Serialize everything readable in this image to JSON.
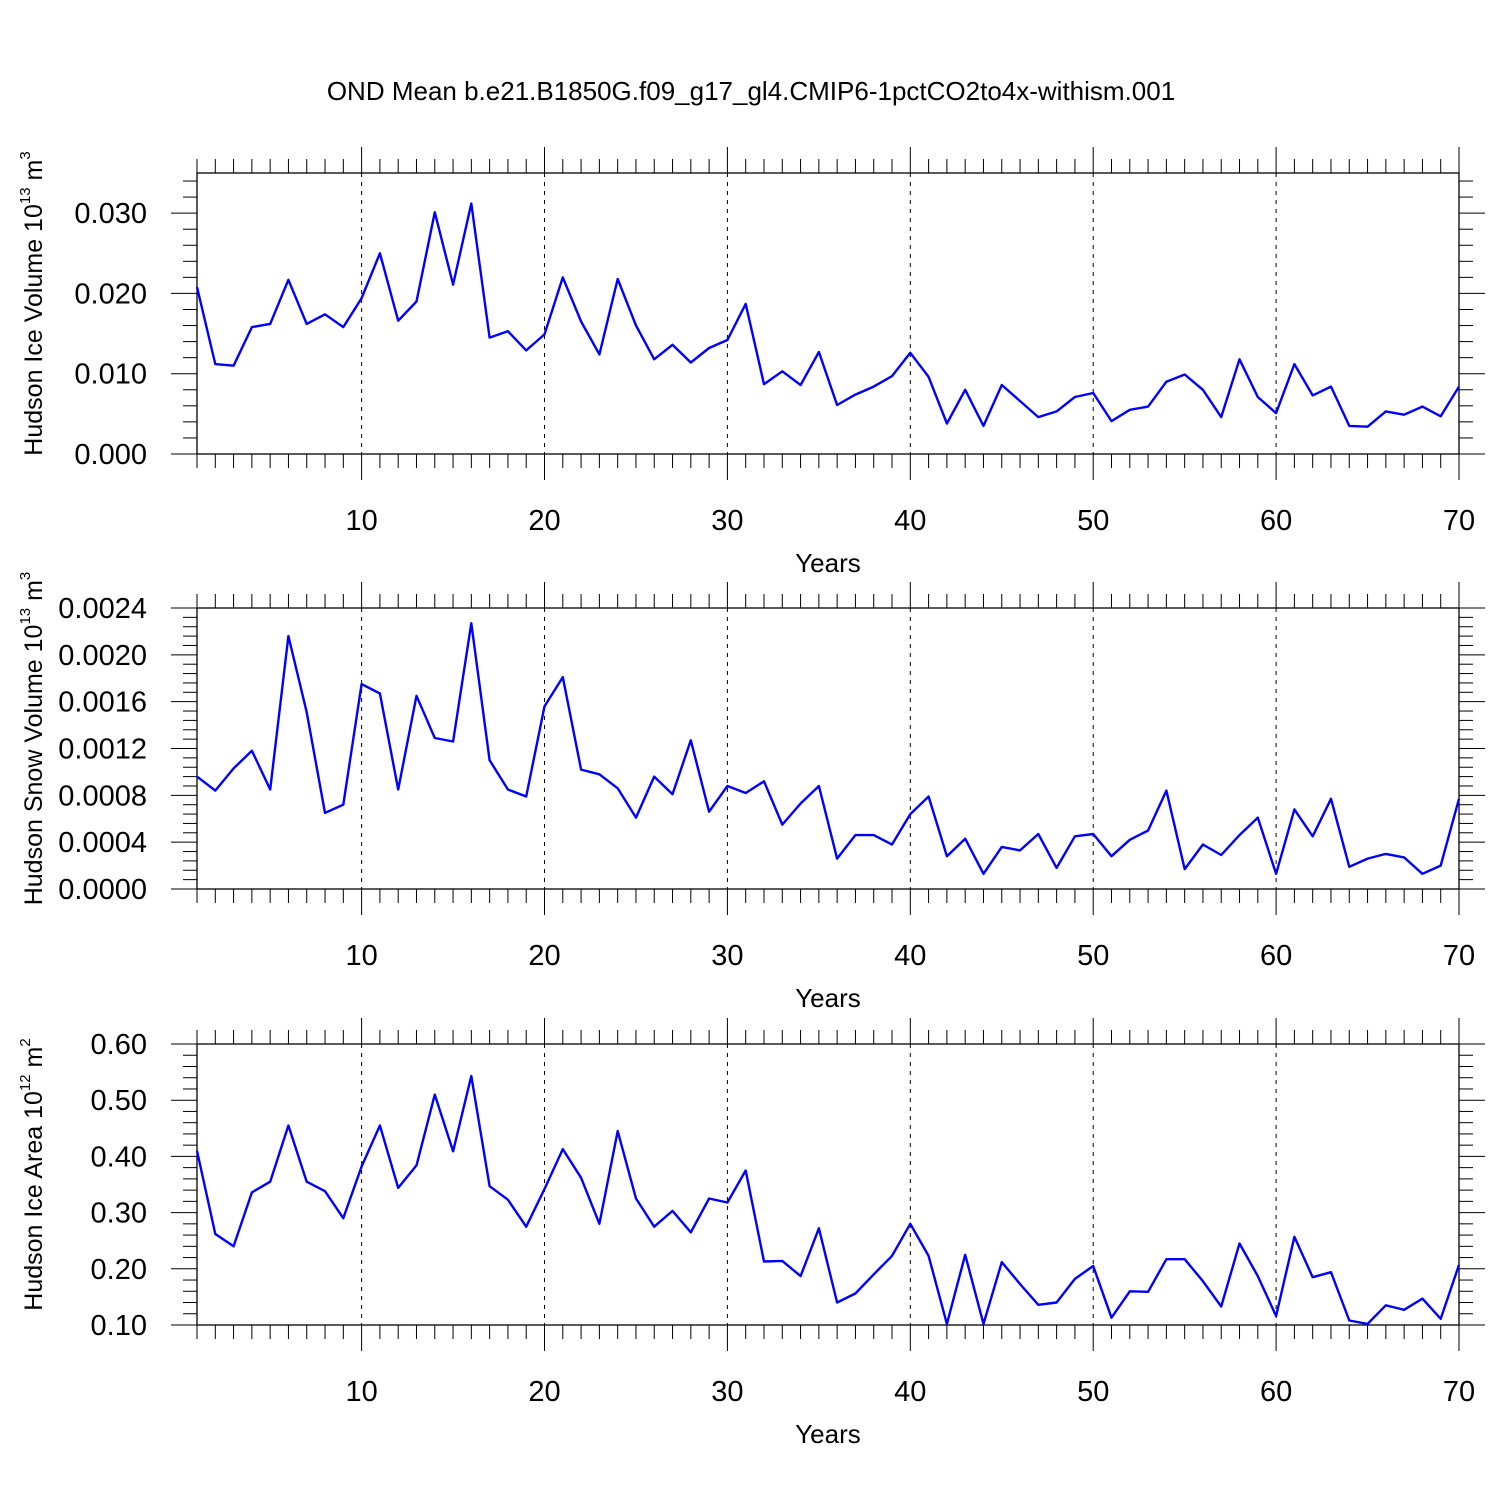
{
  "figure": {
    "title": "OND Mean b.e21.B1850G.f09_g17_gl4.CMIP6-1pctCO2to4x-withism.001"
  },
  "chart_data": [
    {
      "type": "line",
      "xlabel": "Years",
      "ylabel_prefix": "Hudson Ice Volume 10",
      "ylabel_exp": "13",
      "ylabel_unit": " m",
      "ylabel_unit_exp": "3",
      "xlim": [
        1,
        70
      ],
      "ylim": [
        0,
        0.035
      ],
      "xticks": [
        10,
        20,
        30,
        40,
        50,
        60,
        70
      ],
      "yticks": [
        0,
        0.01,
        0.02,
        0.03
      ],
      "ytick_labels": [
        "0.000",
        "0.010",
        "0.020",
        "0.030"
      ],
      "grid": "vertical dashed at major x ticks",
      "color": "#0000ff",
      "x": [
        1,
        2,
        3,
        4,
        5,
        6,
        7,
        8,
        9,
        10,
        11,
        12,
        13,
        14,
        15,
        16,
        17,
        18,
        19,
        20,
        21,
        22,
        23,
        24,
        25,
        26,
        27,
        28,
        29,
        30,
        31,
        32,
        33,
        34,
        35,
        36,
        37,
        38,
        39,
        40,
        41,
        42,
        43,
        44,
        45,
        46,
        47,
        48,
        49,
        50,
        51,
        52,
        53,
        54,
        55,
        56,
        57,
        58,
        59,
        60,
        61,
        62,
        63,
        64,
        65,
        66,
        67,
        68,
        69,
        70
      ],
      "values": [
        0.0208,
        0.0112,
        0.011,
        0.0158,
        0.0162,
        0.0217,
        0.0162,
        0.0174,
        0.0158,
        0.0194,
        0.025,
        0.0166,
        0.019,
        0.0301,
        0.0211,
        0.0312,
        0.0145,
        0.0153,
        0.0129,
        0.0149,
        0.022,
        0.0165,
        0.0124,
        0.0218,
        0.016,
        0.0118,
        0.0136,
        0.0114,
        0.0132,
        0.0142,
        0.0187,
        0.0087,
        0.0103,
        0.0086,
        0.0127,
        0.0061,
        0.0074,
        0.0084,
        0.0097,
        0.0126,
        0.0096,
        0.0038,
        0.008,
        0.0035,
        0.0086,
        0.0066,
        0.0046,
        0.0053,
        0.0071,
        0.0076,
        0.0041,
        0.0055,
        0.0059,
        0.009,
        0.0099,
        0.008,
        0.0046,
        0.0118,
        0.0071,
        0.0051,
        0.0112,
        0.0073,
        0.0084,
        0.0035,
        0.0034,
        0.0053,
        0.0049,
        0.0059,
        0.0047,
        0.0084
      ]
    },
    {
      "type": "line",
      "xlabel": "Years",
      "ylabel_prefix": "Hudson Snow Volume 10",
      "ylabel_exp": "13",
      "ylabel_unit": " m",
      "ylabel_unit_exp": "3",
      "xlim": [
        1,
        70
      ],
      "ylim": [
        0,
        0.0024
      ],
      "xticks": [
        10,
        20,
        30,
        40,
        50,
        60,
        70
      ],
      "yticks": [
        0,
        0.0004,
        0.0008,
        0.0012,
        0.0016,
        0.002,
        0.0024
      ],
      "ytick_labels": [
        "0.0000",
        "0.0004",
        "0.0008",
        "0.0012",
        "0.0016",
        "0.0020",
        "0.0024"
      ],
      "grid": "vertical dashed at major x ticks",
      "color": "#0000ff",
      "x": [
        1,
        2,
        3,
        4,
        5,
        6,
        7,
        8,
        9,
        10,
        11,
        12,
        13,
        14,
        15,
        16,
        17,
        18,
        19,
        20,
        21,
        22,
        23,
        24,
        25,
        26,
        27,
        28,
        29,
        30,
        31,
        32,
        33,
        34,
        35,
        36,
        37,
        38,
        39,
        40,
        41,
        42,
        43,
        44,
        45,
        46,
        47,
        48,
        49,
        50,
        51,
        52,
        53,
        54,
        55,
        56,
        57,
        58,
        59,
        60,
        61,
        62,
        63,
        64,
        65,
        66,
        67,
        68,
        69,
        70
      ],
      "values": [
        0.00096,
        0.00084,
        0.00103,
        0.00118,
        0.00085,
        0.00216,
        0.00151,
        0.00065,
        0.00072,
        0.00175,
        0.00167,
        0.00085,
        0.00165,
        0.00129,
        0.00126,
        0.00227,
        0.0011,
        0.00085,
        0.00079,
        0.00156,
        0.00181,
        0.00102,
        0.00098,
        0.00086,
        0.00061,
        0.00096,
        0.00081,
        0.00127,
        0.00066,
        0.00088,
        0.00082,
        0.00092,
        0.00055,
        0.00073,
        0.00088,
        0.00026,
        0.00046,
        0.00046,
        0.00038,
        0.00064,
        0.00079,
        0.00028,
        0.00043,
        0.00013,
        0.00036,
        0.00033,
        0.00047,
        0.00018,
        0.00045,
        0.00047,
        0.00028,
        0.00042,
        0.0005,
        0.00084,
        0.00017,
        0.00038,
        0.00029,
        0.00046,
        0.00061,
        0.00013,
        0.00068,
        0.00045,
        0.00077,
        0.00019,
        0.00026,
        0.0003,
        0.00027,
        0.00013,
        0.0002,
        0.00077
      ]
    },
    {
      "type": "line",
      "xlabel": "Years",
      "ylabel_prefix": "Hudson Ice Area 10",
      "ylabel_exp": "12",
      "ylabel_unit": " m",
      "ylabel_unit_exp": "2",
      "xlim": [
        1,
        70
      ],
      "ylim": [
        0.1,
        0.6
      ],
      "xticks": [
        10,
        20,
        30,
        40,
        50,
        60,
        70
      ],
      "yticks": [
        0.1,
        0.2,
        0.3,
        0.4,
        0.5,
        0.6
      ],
      "ytick_labels": [
        "0.10",
        "0.20",
        "0.30",
        "0.40",
        "0.50",
        "0.60"
      ],
      "grid": "vertical dashed at major x ticks",
      "color": "#0000ff",
      "x": [
        1,
        2,
        3,
        4,
        5,
        6,
        7,
        8,
        9,
        10,
        11,
        12,
        13,
        14,
        15,
        16,
        17,
        18,
        19,
        20,
        21,
        22,
        23,
        24,
        25,
        26,
        27,
        28,
        29,
        30,
        31,
        32,
        33,
        34,
        35,
        36,
        37,
        38,
        39,
        40,
        41,
        42,
        43,
        44,
        45,
        46,
        47,
        48,
        49,
        50,
        51,
        52,
        53,
        54,
        55,
        56,
        57,
        58,
        59,
        60,
        61,
        62,
        63,
        64,
        65,
        66,
        67,
        68,
        69,
        70
      ],
      "values": [
        0.41,
        0.262,
        0.24,
        0.336,
        0.355,
        0.455,
        0.355,
        0.338,
        0.29,
        0.382,
        0.455,
        0.344,
        0.384,
        0.51,
        0.409,
        0.543,
        0.347,
        0.323,
        0.275,
        0.342,
        0.413,
        0.362,
        0.28,
        0.445,
        0.325,
        0.275,
        0.303,
        0.265,
        0.325,
        0.318,
        0.375,
        0.213,
        0.214,
        0.187,
        0.272,
        0.14,
        0.156,
        0.19,
        0.223,
        0.28,
        0.223,
        0.102,
        0.225,
        0.102,
        0.212,
        0.173,
        0.136,
        0.14,
        0.182,
        0.205,
        0.113,
        0.16,
        0.159,
        0.217,
        0.217,
        0.178,
        0.133,
        0.245,
        0.187,
        0.116,
        0.257,
        0.185,
        0.194,
        0.108,
        0.102,
        0.135,
        0.127,
        0.147,
        0.111,
        0.207
      ]
    }
  ]
}
